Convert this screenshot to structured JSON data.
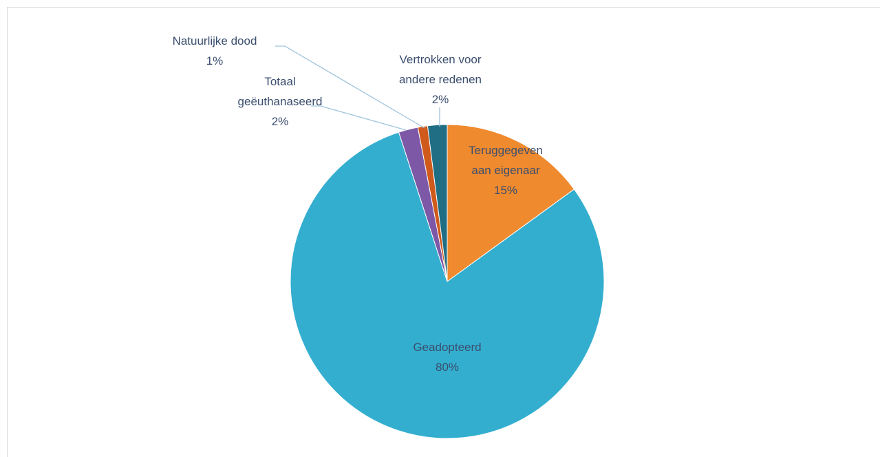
{
  "chart_data": {
    "type": "pie",
    "categories": [
      "Teruggegeven aan eigenaar",
      "Geadopteerd",
      "Totaal geëuthanaseerd",
      "Natuurlijke dood",
      "Vertrokken voor andere redenen"
    ],
    "values": [
      15,
      80,
      2,
      1,
      2
    ],
    "value_labels": [
      "15%",
      "80%",
      "2%",
      "1%",
      "2%"
    ],
    "colors": [
      "#ef8a2e",
      "#33aecf",
      "#7d58a7",
      "#cf5a1c",
      "#1f6e84"
    ]
  }
}
